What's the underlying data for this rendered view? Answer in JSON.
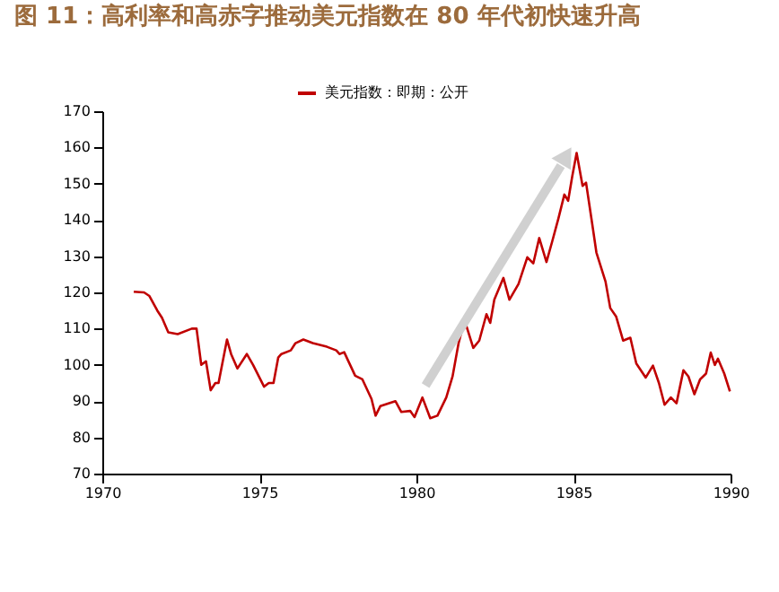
{
  "chart_data": {
    "type": "line",
    "title": "图 11：高利率和高赤字推动美元指数在 80 年代初快速升高",
    "series": [
      {
        "name": "美元指数：即期：公开",
        "color": "#c00000",
        "x": [
          1971.0,
          1971.33,
          1971.5,
          1971.75,
          1971.9,
          1972.1,
          1972.4,
          1972.85,
          1973.0,
          1973.15,
          1973.3,
          1973.45,
          1973.6,
          1973.7,
          1973.97,
          1974.1,
          1974.3,
          1974.6,
          1974.8,
          1975.15,
          1975.3,
          1975.45,
          1975.6,
          1975.7,
          1976.0,
          1976.15,
          1976.4,
          1976.7,
          1977.15,
          1977.45,
          1977.55,
          1977.7,
          1978.05,
          1978.28,
          1978.57,
          1978.7,
          1978.85,
          1979.33,
          1979.52,
          1979.8,
          1979.94,
          1980.19,
          1980.44,
          1980.67,
          1980.95,
          1981.15,
          1981.34,
          1981.53,
          1981.81,
          1982.0,
          1982.23,
          1982.35,
          1982.48,
          1982.77,
          1982.96,
          1983.25,
          1983.53,
          1983.72,
          1983.91,
          1984.14,
          1984.33,
          1984.52,
          1984.71,
          1984.83,
          1984.96,
          1985.1,
          1985.29,
          1985.4,
          1985.6,
          1985.73,
          1986.02,
          1986.17,
          1986.36,
          1986.58,
          1986.81,
          1987.0,
          1987.3,
          1987.53,
          1987.72,
          1987.9,
          1988.1,
          1988.28,
          1988.5,
          1988.66,
          1988.85,
          1989.03,
          1989.22,
          1989.37,
          1989.5,
          1989.6,
          1989.8,
          1989.98
        ],
        "values": [
          120.2,
          120,
          119,
          115,
          113,
          109,
          108.5,
          110,
          110,
          100,
          101,
          93,
          95,
          95,
          107,
          103,
          99,
          103,
          100,
          94,
          95,
          95,
          102,
          103,
          104,
          106,
          107,
          106,
          105,
          104,
          103,
          103.5,
          97,
          96,
          90.6,
          86,
          88.6,
          90,
          87,
          87.3,
          85.6,
          91,
          85.3,
          86,
          91,
          96.8,
          105.9,
          112.4,
          104.7,
          106.7,
          114,
          111.6,
          118,
          124,
          118,
          122.3,
          129.7,
          128,
          135,
          128.4,
          134.3,
          140.4,
          147,
          145.3,
          152,
          158.5,
          149.4,
          150.3,
          138.7,
          131,
          123,
          115.7,
          113.3,
          106.7,
          107.5,
          100.4,
          96.5,
          99.8,
          95,
          89,
          91,
          89.4,
          98.5,
          96.8,
          91.9,
          96,
          97.6,
          103.4,
          100,
          101.7,
          97.6,
          92.7
        ]
      }
    ],
    "xlim": [
      1970,
      1990
    ],
    "xticks": [
      1970,
      1975,
      1980,
      1985,
      1990
    ],
    "ylim": [
      70,
      170
    ],
    "yticks": [
      70,
      80,
      90,
      100,
      110,
      120,
      130,
      140,
      150,
      160,
      170
    ],
    "legend": "top",
    "grid": false
  }
}
